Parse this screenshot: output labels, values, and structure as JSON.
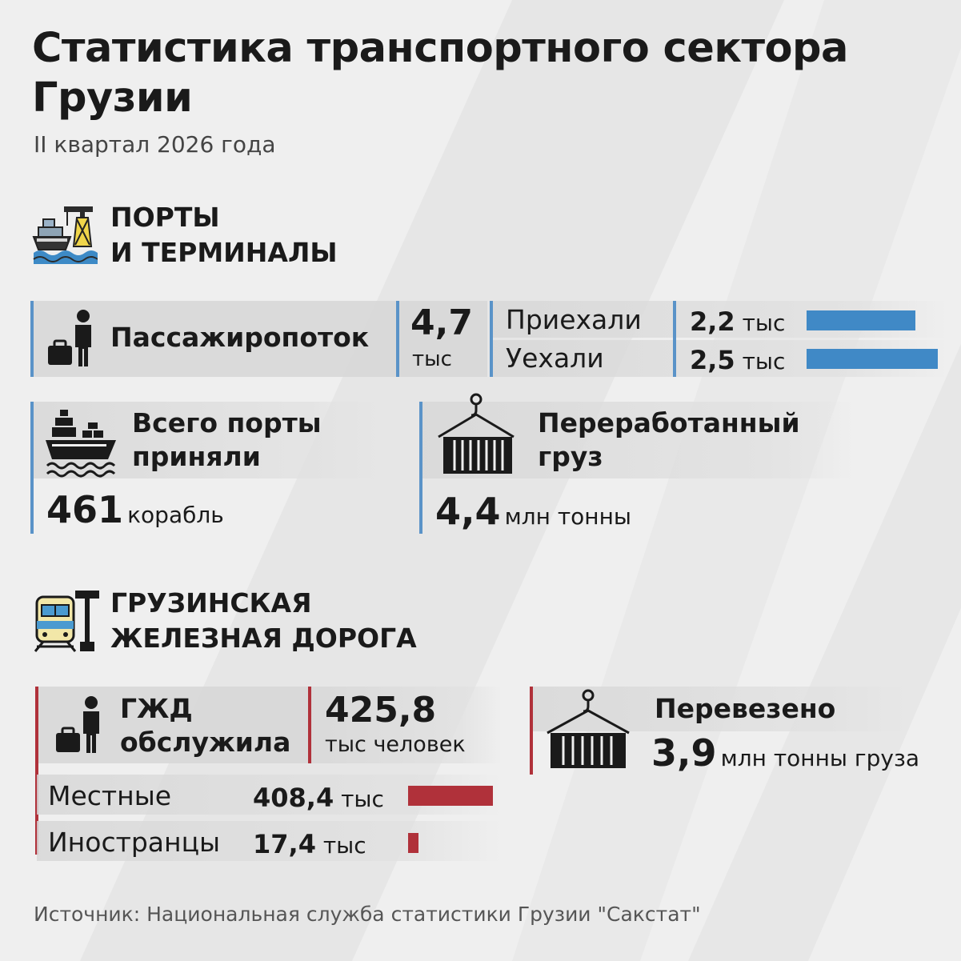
{
  "title": "Статистика транспортного сектора Грузии",
  "subtitle": "II квартал 2026 года",
  "ports": {
    "heading_line1": "ПОРТЫ",
    "heading_line2": "И ТЕРМИНАЛЫ",
    "icon": "port-crane-ship-icon",
    "passengers": {
      "label": "Пассажиропоток",
      "icon": "person-luggage-icon",
      "total_value": "4,7",
      "total_unit": "тыс",
      "arrived_label": "Приехали",
      "arrived_value": "2,2",
      "arrived_unit": "тыс",
      "arrived_share": 2.2,
      "left_label": "Уехали",
      "left_value": "2,5",
      "left_unit": "тыс",
      "left_share": 2.5
    },
    "ships": {
      "label_line1": "Всего порты",
      "label_line2": "приняли",
      "icon": "cargo-ship-icon",
      "value": "461",
      "unit": "корабль"
    },
    "cargo": {
      "label_line1": "Переработанный",
      "label_line2": "груз",
      "icon": "hanging-container-icon",
      "value": "4,4",
      "unit": "млн тонны"
    }
  },
  "railway": {
    "heading_line1": "ГРУЗИНСКАЯ",
    "heading_line2": "ЖЕЛЕЗНАЯ ДОРОГА",
    "icon": "train-icon",
    "served": {
      "label_line1": "ГЖД",
      "label_line2": "обслужила",
      "icon": "person-luggage-icon",
      "value": "425,8",
      "unit": "тыс человек",
      "local_label": "Местные",
      "local_value": "408,4",
      "local_unit": "тыс",
      "local_share": 408.4,
      "foreign_label": "Иностранцы",
      "foreign_value": "17,4",
      "foreign_unit": "тыс",
      "foreign_share": 17.4
    },
    "transported": {
      "label": "Перевезено",
      "icon": "hanging-container-icon",
      "value": "3,9",
      "unit": "млн тонны груза"
    }
  },
  "source": "Источник: Национальная служба статистики Грузии \"Сакстат\"",
  "colors": {
    "blue": "#4089c6",
    "red": "#b0313a",
    "background": "#efefef"
  }
}
